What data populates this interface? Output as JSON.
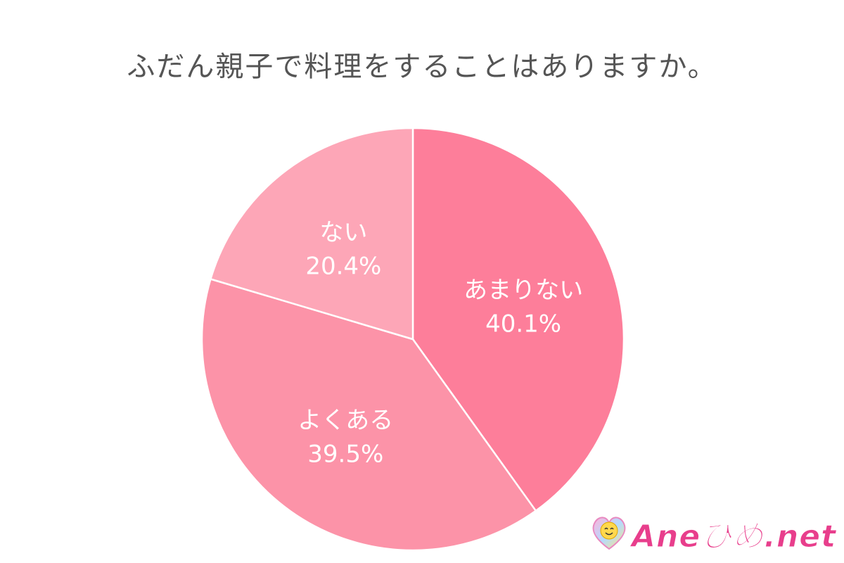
{
  "chart_data": {
    "type": "pie",
    "title": "ふだん親子で料理をすることはありますか。",
    "slices": [
      {
        "label": "あまりない",
        "value": 40.1,
        "value_label": "40.1%",
        "color": "#fd7e9a"
      },
      {
        "label": "よくある",
        "value": 39.5,
        "value_label": "39.5%",
        "color": "#fc93a8"
      },
      {
        "label": "ない",
        "value": 20.4,
        "value_label": "20.4%",
        "color": "#fda6b7"
      }
    ],
    "start": "12 o'clock",
    "direction": "clockwise"
  },
  "logo": {
    "text": "Aneひめ.net",
    "icon": "heart-face-icon"
  },
  "colors": {
    "title": "#555555",
    "slice_border": "#ffffff",
    "label": "#ffffff",
    "logo": "#e83e8c"
  }
}
